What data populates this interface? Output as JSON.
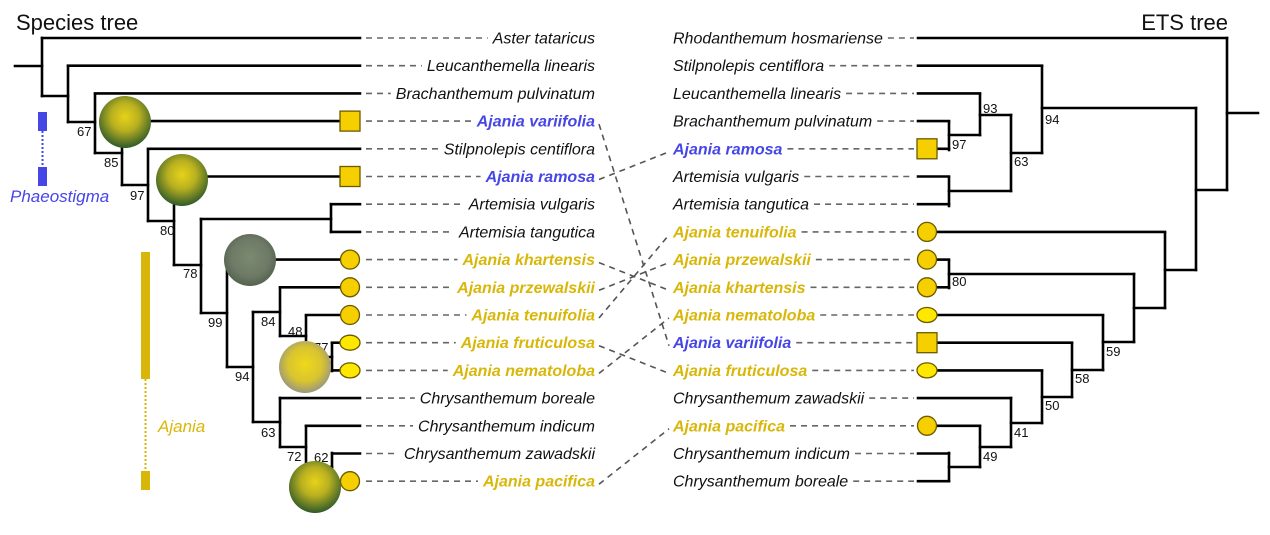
{
  "species_tree": {
    "title": "Species tree",
    "taxa": [
      {
        "name": "Aster tataricus",
        "group": "other",
        "marker": "none"
      },
      {
        "name": "Leucanthemella linearis",
        "group": "other",
        "marker": "none"
      },
      {
        "name": "Brachanthemum pulvinatum",
        "group": "other",
        "marker": "none"
      },
      {
        "name": "Ajania variifolia",
        "group": "Phaeostigma",
        "marker": "square"
      },
      {
        "name": "Stilpnolepis centiflora",
        "group": "other",
        "marker": "none"
      },
      {
        "name": "Ajania ramosa",
        "group": "Phaeostigma",
        "marker": "square"
      },
      {
        "name": "Artemisia vulgaris",
        "group": "other",
        "marker": "none"
      },
      {
        "name": "Artemisia tangutica",
        "group": "other",
        "marker": "none"
      },
      {
        "name": "Ajania khartensis",
        "group": "Ajania",
        "marker": "circle"
      },
      {
        "name": "Ajania przewalskii",
        "group": "Ajania",
        "marker": "circle"
      },
      {
        "name": "Ajania tenuifolia",
        "group": "Ajania",
        "marker": "circle"
      },
      {
        "name": "Ajania fruticulosa",
        "group": "Ajania",
        "marker": "ellipse"
      },
      {
        "name": "Ajania nematoloba",
        "group": "Ajania",
        "marker": "ellipse"
      },
      {
        "name": "Chrysanthemum boreale",
        "group": "other",
        "marker": "none"
      },
      {
        "name": "Chrysanthemum indicum",
        "group": "other",
        "marker": "none"
      },
      {
        "name": "Chrysanthemum zawadskii",
        "group": "other",
        "marker": "none"
      },
      {
        "name": "Ajania pacifica",
        "group": "Ajania",
        "marker": "circle"
      }
    ],
    "support": [
      "67",
      "85",
      "97",
      "80",
      "78",
      "99",
      "94",
      "84",
      "48",
      "77",
      "63",
      "72",
      "62"
    ]
  },
  "ets_tree": {
    "title": "ETS tree",
    "taxa": [
      {
        "name": "Rhodanthemum hosmariense",
        "group": "other",
        "marker": "none"
      },
      {
        "name": "Stilpnolepis centiflora",
        "group": "other",
        "marker": "none"
      },
      {
        "name": "Leucanthemella linearis",
        "group": "other",
        "marker": "none"
      },
      {
        "name": "Brachanthemum pulvinatum",
        "group": "other",
        "marker": "none"
      },
      {
        "name": "Ajania ramosa",
        "group": "Phaeostigma",
        "marker": "square"
      },
      {
        "name": "Artemisia vulgaris",
        "group": "other",
        "marker": "none"
      },
      {
        "name": "Artemisia tangutica",
        "group": "other",
        "marker": "none"
      },
      {
        "name": "Ajania tenuifolia",
        "group": "Ajania",
        "marker": "circle"
      },
      {
        "name": "Ajania przewalskii",
        "group": "Ajania",
        "marker": "circle"
      },
      {
        "name": "Ajania khartensis",
        "group": "Ajania",
        "marker": "circle"
      },
      {
        "name": "Ajania nematoloba",
        "group": "Ajania",
        "marker": "ellipse"
      },
      {
        "name": "Ajania variifolia",
        "group": "Phaeostigma",
        "marker": "square"
      },
      {
        "name": "Ajania fruticulosa",
        "group": "Ajania",
        "marker": "ellipse"
      },
      {
        "name": "Chrysanthemum zawadskii",
        "group": "other",
        "marker": "none"
      },
      {
        "name": "Ajania pacifica",
        "group": "Ajania",
        "marker": "circle"
      },
      {
        "name": "Chrysanthemum indicum",
        "group": "other",
        "marker": "none"
      },
      {
        "name": "Chrysanthemum boreale",
        "group": "other",
        "marker": "none"
      }
    ],
    "support": [
      "93",
      "97",
      "94",
      "63",
      "80",
      "59",
      "58",
      "50",
      "41",
      "49"
    ]
  },
  "links": [
    [
      3,
      11
    ],
    [
      5,
      4
    ],
    [
      8,
      9
    ],
    [
      9,
      8
    ],
    [
      10,
      7
    ],
    [
      11,
      12
    ],
    [
      12,
      10
    ],
    [
      16,
      14
    ]
  ],
  "clades": {
    "phaeostigma": {
      "label": "Phaeostigma",
      "color": "#4646e6"
    },
    "ajania": {
      "label": "Ajania",
      "color": "#d9b70a"
    }
  },
  "colors": {
    "marker_fill": "#f5cf00",
    "ellipse_fill": "#ffe800",
    "marker_stroke": "#6b5a00"
  }
}
